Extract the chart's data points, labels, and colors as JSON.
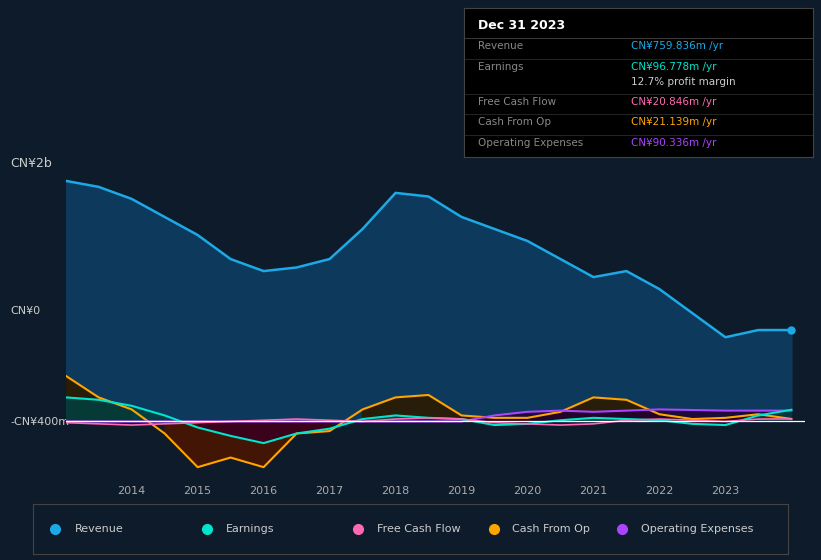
{
  "bg_color": "#0d1b2a",
  "years": [
    2013.0,
    2013.5,
    2014.0,
    2014.5,
    2015.0,
    2015.5,
    2016.0,
    2016.5,
    2017.0,
    2017.5,
    2018.0,
    2018.5,
    2019.0,
    2019.5,
    2020.0,
    2020.5,
    2021.0,
    2021.5,
    2022.0,
    2022.5,
    2023.0,
    2023.5,
    2024.0
  ],
  "revenue": [
    2000,
    1950,
    1850,
    1700,
    1550,
    1350,
    1250,
    1280,
    1350,
    1600,
    1900,
    1870,
    1700,
    1600,
    1500,
    1350,
    1200,
    1250,
    1100,
    900,
    700,
    760,
    760
  ],
  "earnings": [
    200,
    180,
    130,
    50,
    -50,
    -120,
    -180,
    -100,
    -60,
    20,
    50,
    30,
    20,
    -30,
    -20,
    10,
    30,
    20,
    10,
    -20,
    -30,
    50,
    97
  ],
  "free_cash_flow": [
    -10,
    -20,
    -30,
    -20,
    -10,
    0,
    10,
    20,
    10,
    0,
    20,
    30,
    20,
    -10,
    -20,
    -30,
    -20,
    10,
    20,
    10,
    0,
    20,
    21
  ],
  "cash_from_op": [
    380,
    200,
    100,
    -100,
    -380,
    -300,
    -380,
    -100,
    -80,
    100,
    200,
    220,
    50,
    30,
    30,
    80,
    200,
    180,
    60,
    20,
    30,
    60,
    21
  ],
  "operating_expenses": [
    0,
    0,
    0,
    0,
    0,
    0,
    0,
    0,
    0,
    0,
    0,
    0,
    0,
    50,
    80,
    90,
    80,
    90,
    100,
    95,
    90,
    90,
    90
  ],
  "revenue_color": "#1ca9e6",
  "revenue_fill": "#0d3a5c",
  "earnings_color": "#00e5cc",
  "earnings_fill_pos": "#004040",
  "earnings_fill_neg": "#3a0020",
  "free_cash_flow_color": "#ff69b4",
  "cash_from_op_color": "#ffa500",
  "cash_from_op_fill_pos": "#2a1a00",
  "cash_from_op_fill_neg": "#4a1500",
  "operating_expenses_color": "#aa44ff",
  "operating_expenses_fill": "#220033",
  "zero_line_color": "#ffffff",
  "grid_color": "#1a3a5c",
  "ylabel_top": "CN¥2b",
  "ylabel_mid": "CN¥0",
  "ylabel_bot": "-CN¥400m",
  "info_title": "Dec 31 2023",
  "info_rows": [
    [
      "Revenue",
      "CN¥759.836m /yr",
      "#1ca9e6"
    ],
    [
      "Earnings",
      "CN¥96.778m /yr",
      "#00e5cc"
    ],
    [
      "",
      "12.7% profit margin",
      "#cccccc"
    ],
    [
      "Free Cash Flow",
      "CN¥20.846m /yr",
      "#ff69b4"
    ],
    [
      "Cash From Op",
      "CN¥21.139m /yr",
      "#ffa500"
    ],
    [
      "Operating Expenses",
      "CN¥90.336m /yr",
      "#aa44ff"
    ]
  ],
  "legend_items": [
    [
      "Revenue",
      "#1ca9e6"
    ],
    [
      "Earnings",
      "#00e5cc"
    ],
    [
      "Free Cash Flow",
      "#ff69b4"
    ],
    [
      "Cash From Op",
      "#ffa500"
    ],
    [
      "Operating Expenses",
      "#aa44ff"
    ]
  ],
  "ylim": [
    -500,
    2200
  ],
  "xlim": [
    2013.0,
    2024.2
  ],
  "xticks": [
    2014,
    2015,
    2016,
    2017,
    2018,
    2019,
    2020,
    2021,
    2022,
    2023
  ]
}
